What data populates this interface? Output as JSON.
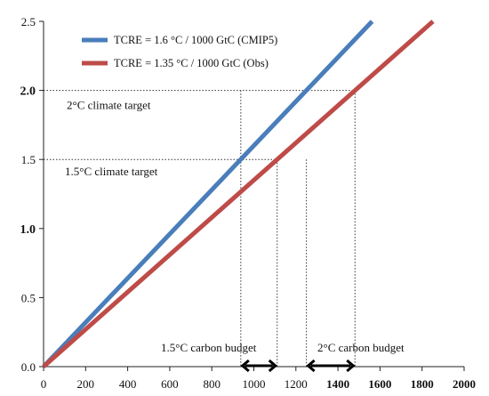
{
  "chart_data": {
    "type": "line",
    "title": "",
    "xlabel": "",
    "ylabel": "",
    "xlim": [
      0,
      2000
    ],
    "ylim": [
      0,
      2.5
    ],
    "x_ticks": [
      "0",
      "200",
      "400",
      "600",
      "800",
      "1000",
      "1200",
      "1400",
      "1600",
      "1800",
      "2000"
    ],
    "x_tick_values": [
      0,
      200,
      400,
      600,
      800,
      1000,
      1200,
      1400,
      1600,
      1800,
      2000
    ],
    "y_ticks": [
      "0.0",
      "0.5",
      "1.0",
      "1.5",
      "2.0",
      "2.5"
    ],
    "y_tick_values": [
      0,
      0.5,
      1.0,
      1.5,
      2.0,
      2.5
    ],
    "y_ticks_bold": [
      false,
      false,
      true,
      false,
      true,
      false
    ],
    "x_ticks_bold": [
      false,
      false,
      false,
      false,
      false,
      false,
      false,
      true,
      true,
      true,
      true
    ],
    "grid": false,
    "legend_position": "top-left",
    "series": [
      {
        "name": "TCRE = 1.6 °C / 1000 GtC (CMIP5)",
        "color": "#4a7ebb",
        "x": [
          0,
          1562.5
        ],
        "y": [
          0,
          2.5
        ]
      },
      {
        "name": "TCRE = 1.35 °C / 1000 GtC (Obs)",
        "color": "#be4b48",
        "x": [
          0,
          1851.9
        ],
        "y": [
          0,
          2.5
        ]
      }
    ],
    "reference_lines": [
      {
        "label": "2°C climate target",
        "y": 2.0,
        "x_end": 1481
      },
      {
        "label": "1.5°C climate target",
        "y": 1.5,
        "x_end": 1111
      }
    ],
    "budgets": [
      {
        "label": "1.5°C carbon budget",
        "x_start": 938,
        "x_end": 1111
      },
      {
        "label": "2°C carbon budget",
        "x_start": 1250,
        "x_end": 1481
      }
    ]
  }
}
